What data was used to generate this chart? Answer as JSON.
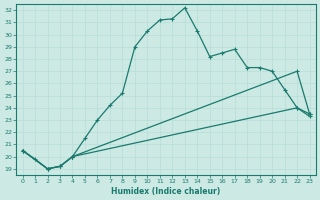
{
  "xlabel": "Humidex (Indice chaleur)",
  "ylabel": "",
  "bg_color": "#cce9e4",
  "line_color": "#1a7a6e",
  "grid_color": "#b8ddd8",
  "xlim": [
    -0.5,
    23.5
  ],
  "ylim": [
    18.5,
    32.5
  ],
  "xticks": [
    0,
    1,
    2,
    3,
    4,
    5,
    6,
    7,
    8,
    9,
    10,
    11,
    12,
    13,
    14,
    15,
    16,
    17,
    18,
    19,
    20,
    21,
    22,
    23
  ],
  "yticks": [
    19,
    20,
    21,
    22,
    23,
    24,
    25,
    26,
    27,
    28,
    29,
    30,
    31,
    32
  ],
  "line1_x": [
    0,
    1,
    2,
    3,
    4,
    5,
    6,
    7,
    8,
    9,
    10,
    11,
    12,
    13,
    14,
    15,
    16,
    17,
    18,
    19,
    20,
    21,
    22,
    23
  ],
  "line1_y": [
    20.5,
    19.8,
    19.0,
    19.2,
    20.0,
    21.5,
    23.0,
    24.2,
    25.2,
    29.0,
    30.3,
    31.2,
    31.3,
    32.2,
    30.3,
    28.2,
    28.5,
    28.8,
    27.3,
    27.3,
    27.0,
    25.5,
    24.0,
    23.3
  ],
  "line2_x": [
    0,
    2,
    3,
    4,
    22,
    23
  ],
  "line2_y": [
    20.5,
    19.0,
    19.2,
    20.0,
    27.0,
    23.5
  ],
  "line3_x": [
    0,
    2,
    3,
    4,
    22,
    23
  ],
  "line3_y": [
    20.5,
    19.0,
    19.2,
    20.0,
    24.0,
    23.5
  ]
}
